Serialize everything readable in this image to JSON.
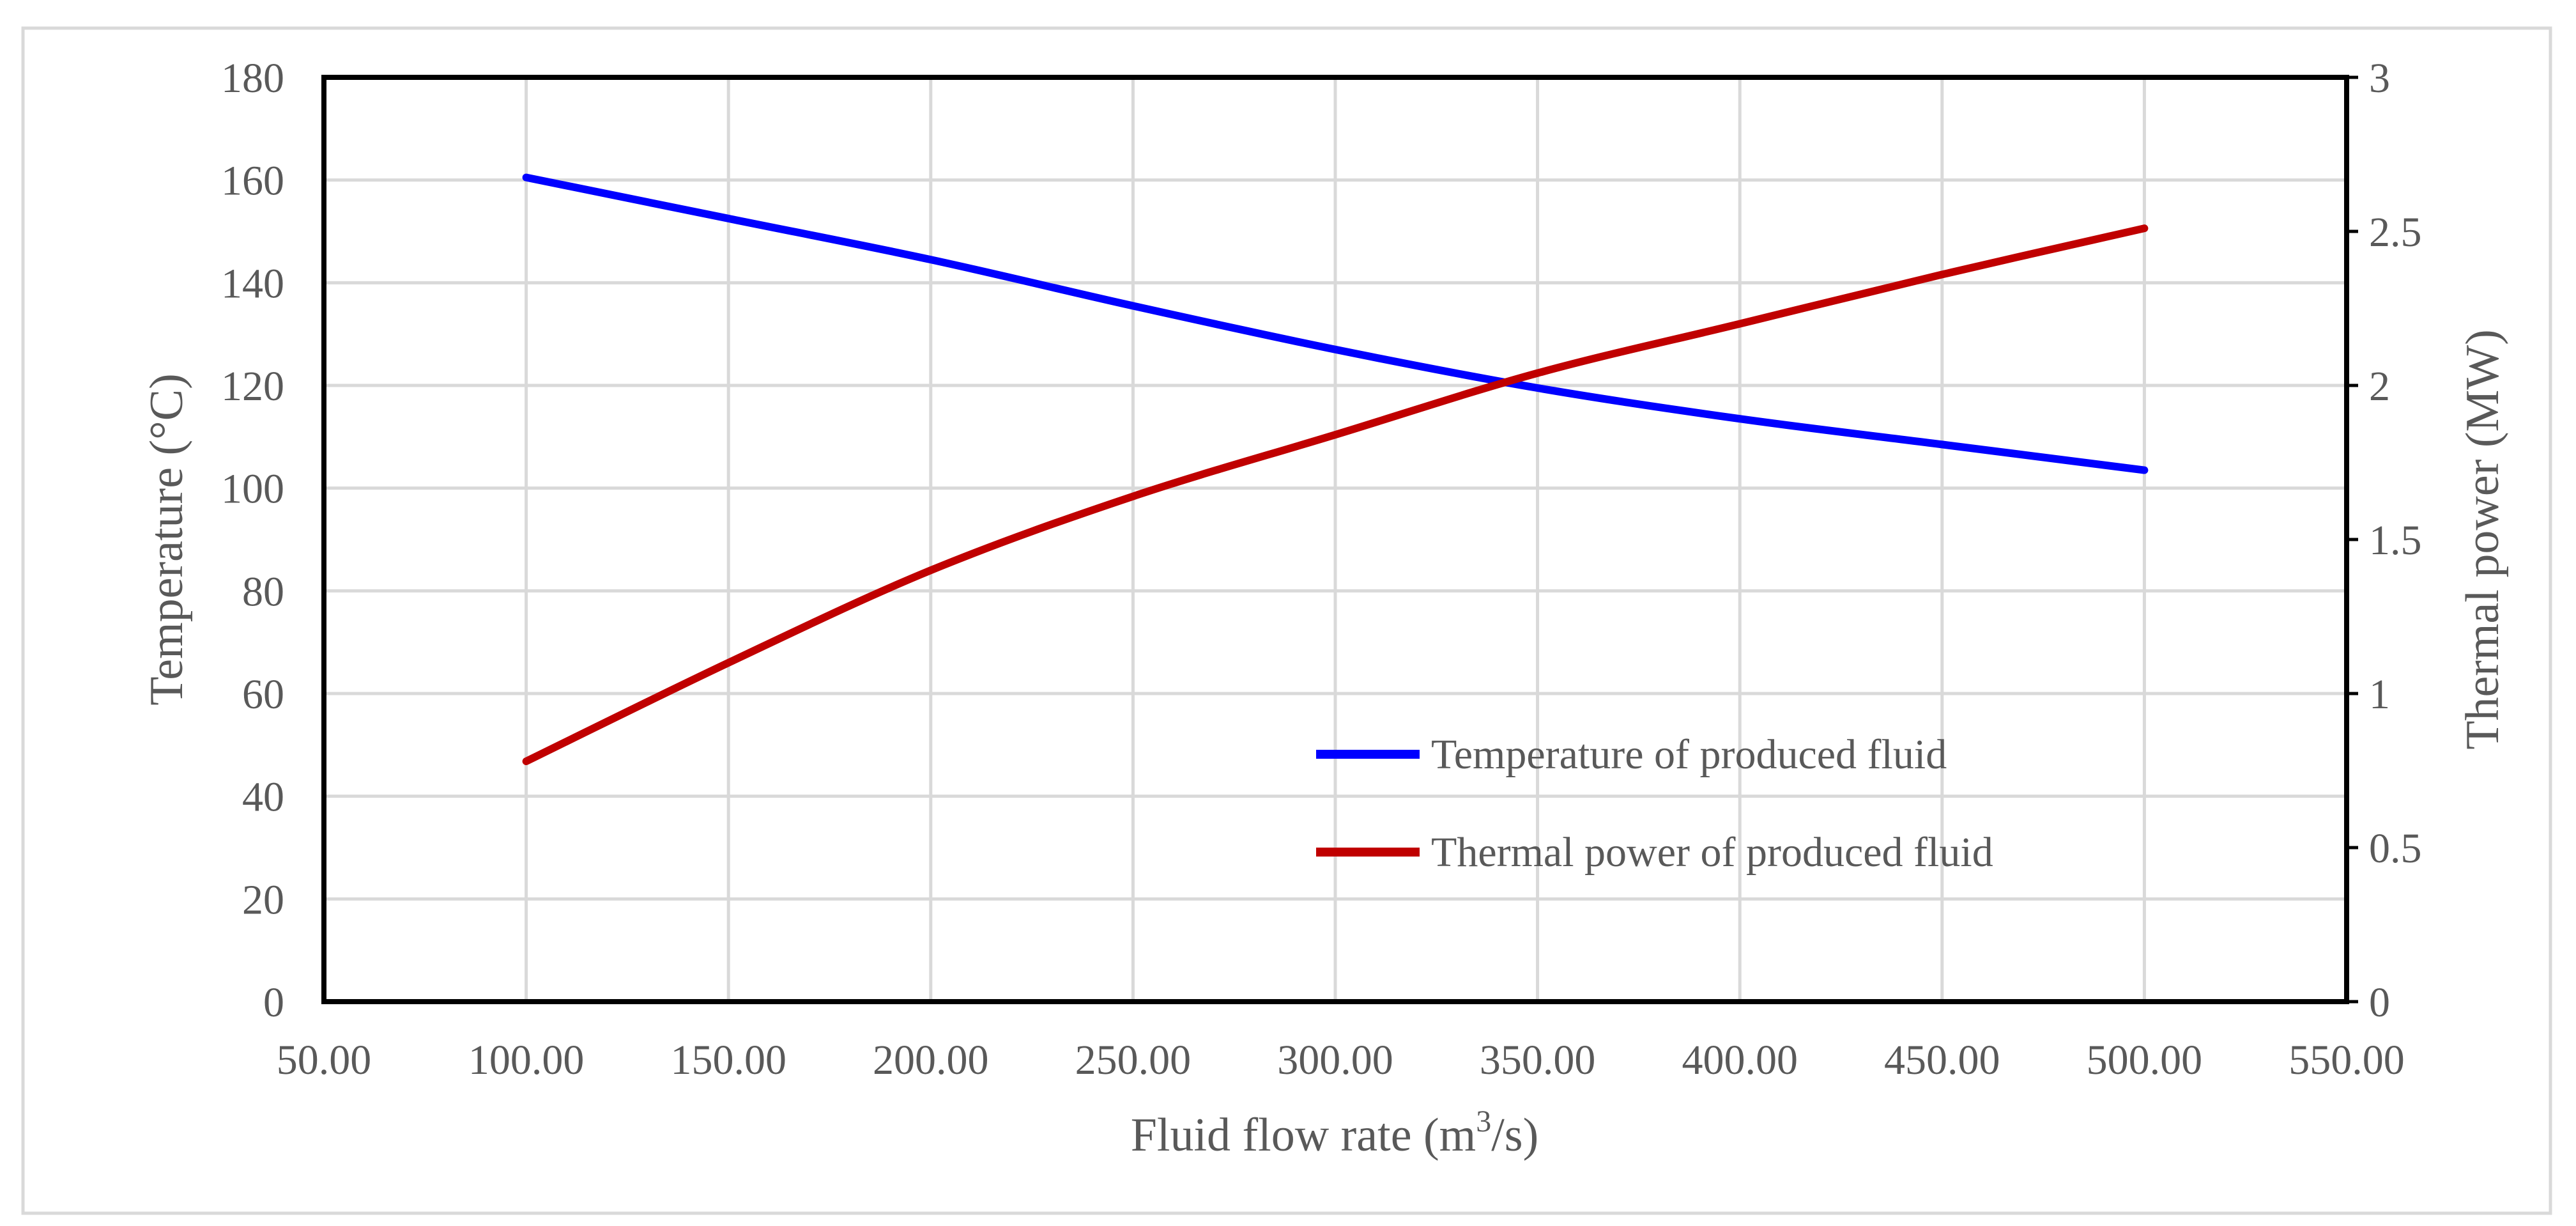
{
  "chart_data": {
    "type": "line",
    "title": "",
    "xlabel": "Fluid flow rate (m",
    "xlabel_sup": "3",
    "xlabel_tail": "/s)",
    "ylabel": "Temperature (°C)",
    "y2label": "Thermal power (MW)",
    "xlim": [
      50,
      550
    ],
    "ylim": [
      0,
      180
    ],
    "y2lim": [
      0,
      3
    ],
    "x_ticks": [
      50,
      100,
      150,
      200,
      250,
      300,
      350,
      400,
      450,
      500,
      550
    ],
    "x_tick_labels": [
      "50.00",
      "100.00",
      "150.00",
      "200.00",
      "250.00",
      "300.00",
      "350.00",
      "400.00",
      "450.00",
      "500.00",
      "550.00"
    ],
    "y_ticks": [
      0,
      20,
      40,
      60,
      80,
      100,
      120,
      140,
      160,
      180
    ],
    "y_tick_labels": [
      "0",
      "20",
      "40",
      "60",
      "80",
      "100",
      "120",
      "140",
      "160",
      "180"
    ],
    "y2_ticks": [
      0,
      0.5,
      1,
      1.5,
      2,
      2.5,
      3
    ],
    "y2_tick_labels": [
      "0",
      "0.5",
      "1",
      "1.5",
      "2",
      "2.5",
      "3"
    ],
    "grid": true,
    "legend_position": "bottom-center-right",
    "series": [
      {
        "name": "Temperature of produced fluid",
        "axis": "left",
        "color": "#0000FF",
        "x": [
          100,
          150,
          200,
          250,
          300,
          350,
          400,
          450,
          500
        ],
        "values": [
          160.5,
          152.5,
          144.5,
          135.5,
          127,
          119.5,
          113.5,
          108.5,
          103.5
        ]
      },
      {
        "name": "Thermal power of produced fluid",
        "axis": "right",
        "color": "#C00000",
        "x": [
          100,
          150,
          200,
          250,
          300,
          350,
          400,
          450,
          500
        ],
        "values": [
          0.78,
          1.1,
          1.4,
          1.64,
          1.84,
          2.04,
          2.2,
          2.36,
          2.51
        ]
      }
    ]
  }
}
